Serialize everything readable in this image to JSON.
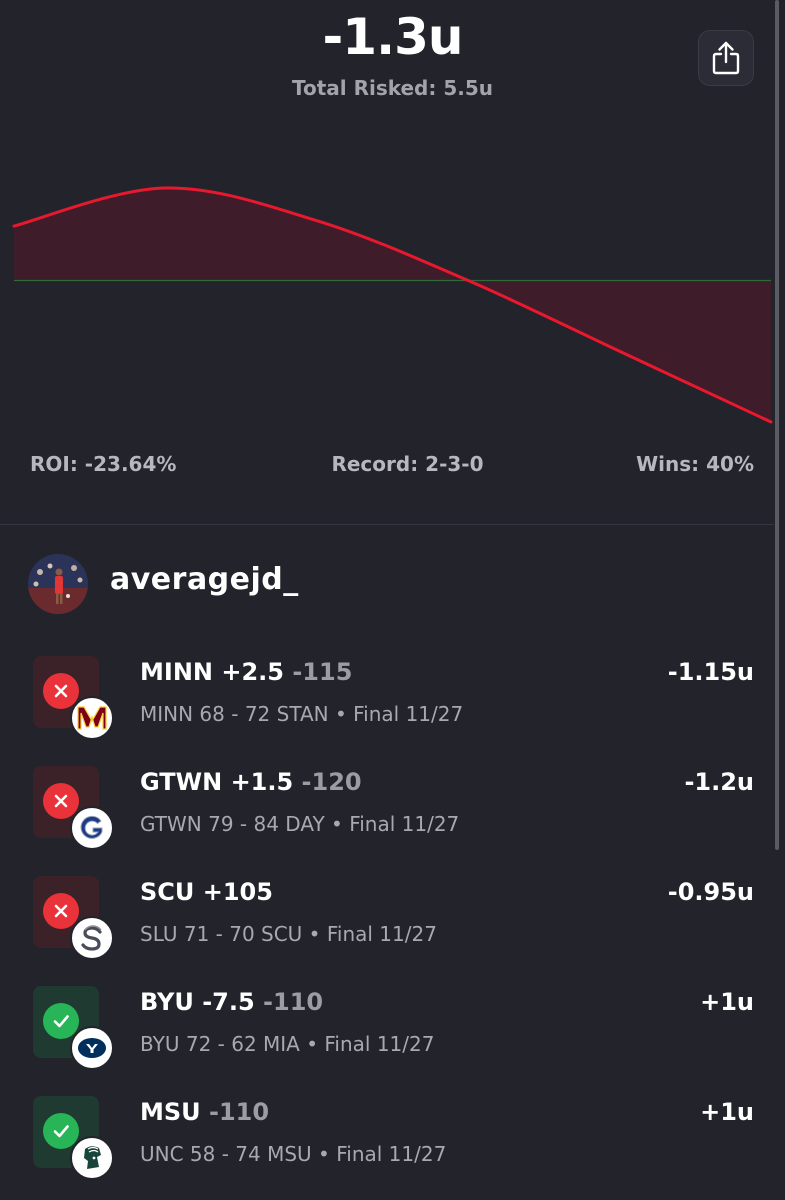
{
  "header": {
    "total": "-1.3u",
    "total_risked": "Total Risked: 5.5u"
  },
  "chart_data": {
    "type": "area",
    "title": "",
    "baseline": 0,
    "x": [
      0,
      1,
      2,
      3,
      4,
      5
    ],
    "y": [
      0.5,
      0.85,
      0.55,
      0,
      -0.65,
      -1.3
    ],
    "colors": {
      "line": "#e8182f",
      "fill": "#3f1c29",
      "baseline": "#2e6a3a"
    },
    "grid": false,
    "axes_visible": false
  },
  "stats": {
    "roi": "ROI: -23.64%",
    "record": "Record: 2-3-0",
    "wins": "Wins: 40%"
  },
  "user": {
    "username": "averagejd_"
  },
  "bets": [
    {
      "status": "loss",
      "status_icon": "x-icon",
      "team_logo": "minnesota-m-logo",
      "pick": "MINN +2.5",
      "odds": "-115",
      "score": "MINN 68 - 72 STAN • Final 11/27",
      "result": "-1.15u"
    },
    {
      "status": "loss",
      "status_icon": "x-icon",
      "team_logo": "georgetown-g-logo",
      "pick": "GTWN +1.5",
      "odds": "-120",
      "score": "GTWN 79 - 84 DAY • Final 11/27",
      "result": "-1.2u"
    },
    {
      "status": "loss",
      "status_icon": "x-icon",
      "team_logo": "santa-clara-logo",
      "pick": "SCU +105",
      "odds": "",
      "score": "SLU 71 - 70 SCU • Final 11/27",
      "result": "-0.95u"
    },
    {
      "status": "win",
      "status_icon": "check-icon",
      "team_logo": "byu-logo",
      "pick": "BYU -7.5",
      "odds": "-110",
      "score": "BYU 72 - 62 MIA • Final 11/27",
      "result": "+1u"
    },
    {
      "status": "win",
      "status_icon": "check-icon",
      "team_logo": "michigan-state-spartan-logo",
      "pick": "MSU",
      "odds": "-110",
      "score": "UNC 58 - 74 MSU • Final 11/27",
      "result": "+1u"
    }
  ]
}
